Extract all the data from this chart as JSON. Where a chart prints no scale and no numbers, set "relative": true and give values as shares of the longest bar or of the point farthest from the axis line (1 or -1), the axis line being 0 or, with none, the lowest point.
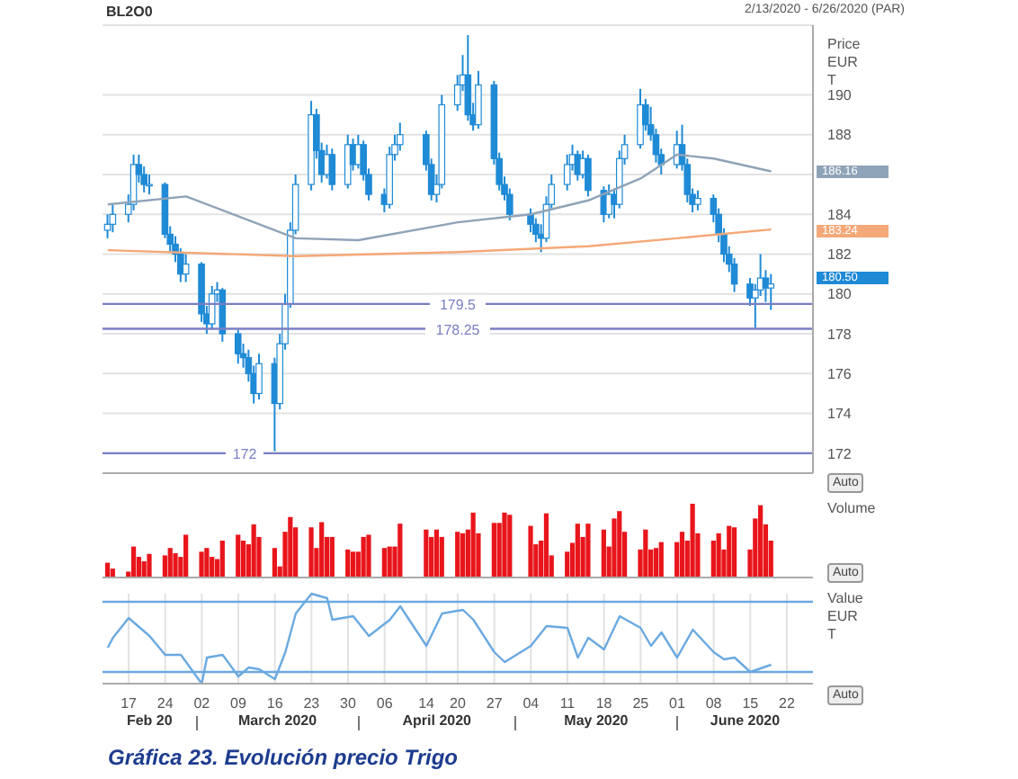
{
  "chart_data": [
    {
      "type": "candlestick",
      "ylabel": "Price EUR T",
      "tick_labels": "y",
      "grid": true,
      "annotations": [
        "BL2O0",
        "2/13/2020 - 6/26/2020 (PAR)",
        "Auto",
        "186.16",
        "183.24"
      ],
      "value_labels": [
        null,
        null,
        null,
        null,
        null,
        null,
        null,
        null,
        null,
        null,
        null,
        null,
        null,
        null,
        null,
        null,
        null,
        null,
        null,
        null,
        null,
        null,
        null,
        null,
        null,
        null,
        null,
        null,
        null,
        null,
        null,
        null,
        null,
        null,
        null,
        null,
        null,
        null,
        null,
        null,
        null,
        null,
        null,
        null,
        null,
        null,
        null,
        null,
        null,
        null,
        null,
        null,
        null,
        null,
        null,
        null,
        null,
        null,
        null,
        null,
        null,
        null,
        null,
        null,
        null,
        null,
        null,
        null,
        null,
        null,
        null,
        null,
        null,
        null,
        null,
        null,
        null,
        null,
        null,
        null,
        null,
        null,
        null,
        null,
        null,
        null,
        null,
        null,
        "180.50"
      ],
      "xlim": [
        "2020-02-12",
        "2020-06-27"
      ],
      "ylim": [
        171,
        193.5
      ],
      "yticks": [
        172,
        174,
        176,
        178,
        180,
        182,
        184,
        {
          "value": 186,
          "label": null
        },
        188,
        190
      ],
      "ref_lines": [
        {
          "axis": "y",
          "value": 179.5,
          "label": "179.5",
          "color": "#7b7fc4"
        },
        {
          "axis": "y",
          "value": 178.25,
          "label": "178.25",
          "color": "#7b7fc4"
        },
        {
          "axis": "y",
          "value": 172,
          "label": "172",
          "color": "#7b7fc4"
        }
      ],
      "color": "#1f8ad6",
      "x": [
        "2020-02-13",
        "2020-02-14",
        "2020-02-17",
        "2020-02-18",
        "2020-02-19",
        "2020-02-20",
        "2020-02-21",
        "2020-02-24",
        "2020-02-25",
        "2020-02-26",
        "2020-02-27",
        "2020-02-28",
        "2020-03-02",
        "2020-03-03",
        "2020-03-04",
        "2020-03-05",
        "2020-03-06",
        "2020-03-09",
        "2020-03-10",
        "2020-03-11",
        "2020-03-12",
        "2020-03-13",
        "2020-03-16",
        "2020-03-17",
        "2020-03-18",
        "2020-03-19",
        "2020-03-20",
        "2020-03-23",
        "2020-03-24",
        "2020-03-25",
        "2020-03-26",
        "2020-03-27",
        "2020-03-30",
        "2020-03-31",
        "2020-04-01",
        "2020-04-02",
        "2020-04-03",
        "2020-04-06",
        "2020-04-07",
        "2020-04-08",
        "2020-04-09",
        "2020-04-14",
        "2020-04-15",
        "2020-04-16",
        "2020-04-17",
        "2020-04-20",
        "2020-04-21",
        "2020-04-22",
        "2020-04-23",
        "2020-04-24",
        "2020-04-27",
        "2020-04-28",
        "2020-04-29",
        "2020-04-30",
        "2020-05-04",
        "2020-05-05",
        "2020-05-06",
        "2020-05-07",
        "2020-05-08",
        "2020-05-11",
        "2020-05-12",
        "2020-05-13",
        "2020-05-14",
        "2020-05-15",
        "2020-05-18",
        "2020-05-19",
        "2020-05-20",
        "2020-05-21",
        "2020-05-22",
        "2020-05-25",
        "2020-05-26",
        "2020-05-27",
        "2020-05-28",
        "2020-05-29",
        "2020-06-01",
        "2020-06-02",
        "2020-06-03",
        "2020-06-04",
        "2020-06-05",
        "2020-06-08",
        "2020-06-09",
        "2020-06-10",
        "2020-06-11",
        "2020-06-12",
        "2020-06-15",
        "2020-06-16",
        "2020-06-17",
        "2020-06-18",
        "2020-06-19"
      ],
      "ohlc": [
        [
          183.2,
          184,
          182.8,
          183.5
        ],
        [
          183.5,
          184.5,
          183.1,
          184
        ],
        [
          184,
          185,
          183.6,
          184.5
        ],
        [
          184.5,
          187,
          184.2,
          186.5
        ],
        [
          186.5,
          187,
          185.6,
          186
        ],
        [
          186,
          186.4,
          185.1,
          185.5
        ],
        [
          185.5,
          186,
          185,
          185.5
        ],
        [
          185.5,
          185.6,
          182.8,
          183
        ],
        [
          183,
          183.4,
          182.1,
          182.5
        ],
        [
          182.5,
          182.9,
          181.6,
          182
        ],
        [
          182,
          182.3,
          180.6,
          181
        ],
        [
          181,
          182,
          180.6,
          181.5
        ],
        [
          181.5,
          181.6,
          178.6,
          179
        ],
        [
          179,
          179.4,
          178,
          178.5
        ],
        [
          178.5,
          180.4,
          178.2,
          180
        ],
        [
          180,
          180.6,
          179.6,
          180.2
        ],
        [
          180.2,
          180.3,
          177.6,
          178
        ],
        [
          178,
          178.2,
          176.5,
          177
        ],
        [
          177,
          177.5,
          176.3,
          176.8
        ],
        [
          176.8,
          177.2,
          175.6,
          176
        ],
        [
          176,
          176.4,
          174.5,
          175
        ],
        [
          175,
          177,
          174.7,
          176.5
        ],
        [
          176.5,
          176.8,
          172.1,
          174.5
        ],
        [
          174.5,
          178,
          174.2,
          177.5
        ],
        [
          177.5,
          180,
          177.2,
          179.5
        ],
        [
          179.5,
          183.6,
          179.3,
          183.2
        ],
        [
          183.2,
          186,
          183,
          185.5
        ],
        [
          185.5,
          189.7,
          185.2,
          189
        ],
        [
          189,
          189.3,
          186.8,
          187.2
        ],
        [
          187.2,
          187.6,
          185.6,
          186
        ],
        [
          186,
          187.5,
          185.8,
          187
        ],
        [
          187,
          187.3,
          185.2,
          185.5
        ],
        [
          185.5,
          188,
          185.3,
          187.5
        ],
        [
          187.5,
          187.8,
          186.2,
          186.5
        ],
        [
          186.5,
          188,
          186.3,
          187.5
        ],
        [
          187.5,
          187.7,
          185.7,
          186
        ],
        [
          186,
          186.3,
          184.7,
          185
        ],
        [
          185,
          185.3,
          184.1,
          184.5
        ],
        [
          184.5,
          187.4,
          184.3,
          187
        ],
        [
          187,
          188,
          186.7,
          187.5
        ],
        [
          187.5,
          188.6,
          187.2,
          188
        ],
        [
          188,
          188.2,
          186.2,
          186.5
        ],
        [
          186.5,
          186.8,
          184.7,
          185
        ],
        [
          185,
          186,
          184.6,
          185.5
        ],
        [
          185.5,
          190,
          185.3,
          189.5
        ],
        [
          189.5,
          191,
          189.2,
          190.5
        ],
        [
          190.5,
          192,
          190.2,
          191
        ],
        [
          191,
          193,
          188.7,
          189
        ],
        [
          189,
          189.6,
          188.2,
          188.5
        ],
        [
          188.5,
          191.2,
          188.3,
          190.5
        ],
        [
          190.5,
          190.7,
          186.5,
          186.8
        ],
        [
          186.8,
          187.1,
          185.2,
          185.5
        ],
        [
          185.5,
          185.9,
          184.7,
          185
        ],
        [
          185,
          185.3,
          183.7,
          184
        ],
        [
          184,
          184.3,
          183.1,
          183.5
        ],
        [
          183.5,
          183.8,
          182.6,
          183
        ],
        [
          183,
          183.5,
          182.1,
          182.8
        ],
        [
          182.8,
          184.9,
          182.6,
          184.5
        ],
        [
          184.5,
          186,
          184.3,
          185.5
        ],
        [
          185.5,
          187,
          185.2,
          186.5
        ],
        [
          186.5,
          187.5,
          186.2,
          187
        ],
        [
          187,
          187.2,
          185.7,
          186
        ],
        [
          186,
          187.2,
          185.8,
          186.8
        ],
        [
          186.8,
          187,
          184.9,
          185.2
        ],
        [
          185.2,
          185.4,
          183.6,
          184
        ],
        [
          184,
          185.5,
          183.8,
          185
        ],
        [
          185,
          185.3,
          183.8,
          184.5
        ],
        [
          184.5,
          187.2,
          184.3,
          186.8
        ],
        [
          186.8,
          188,
          186.5,
          187.5
        ],
        [
          187.5,
          190.3,
          187.3,
          189.5
        ],
        [
          189.5,
          189.8,
          188.2,
          188.5
        ],
        [
          188.5,
          189.4,
          187.7,
          188
        ],
        [
          188,
          188.3,
          186.6,
          187
        ],
        [
          187,
          187.3,
          186,
          186.5
        ],
        [
          186.5,
          188.2,
          186.3,
          187.5
        ],
        [
          187.5,
          188.5,
          186.2,
          186.5
        ],
        [
          186.5,
          186.8,
          184.6,
          185
        ],
        [
          185,
          185.3,
          184.1,
          184.5
        ],
        [
          184.5,
          185.2,
          184.2,
          184.8
        ],
        [
          184.8,
          185,
          183.6,
          184
        ],
        [
          184,
          184.3,
          182.6,
          183
        ],
        [
          183,
          183.3,
          181.6,
          182
        ],
        [
          182,
          182.4,
          181.1,
          181.5
        ],
        [
          181.5,
          181.8,
          180.1,
          180.5
        ],
        [
          180.5,
          180.8,
          179.4,
          179.8
        ],
        [
          179.8,
          180.5,
          178.3,
          180.2
        ],
        [
          180.2,
          182,
          179.9,
          180.8
        ],
        [
          180.8,
          181.2,
          179.6,
          180.3
        ],
        [
          180.3,
          181,
          179.2,
          180.5
        ]
      ],
      "series": [
        {
          "type": "line",
          "color": "#8fa3b8",
          "x": [
            "2020-02-13",
            "2020-02-28",
            "2020-03-20",
            "2020-04-01",
            "2020-04-20",
            "2020-05-04",
            "2020-05-15",
            "2020-05-25",
            "2020-06-01",
            "2020-06-08",
            "2020-06-19"
          ],
          "values": [
            184.5,
            184.9,
            182.8,
            182.7,
            183.6,
            184,
            184.7,
            185.8,
            187,
            186.8,
            186.16
          ]
        },
        {
          "type": "line",
          "color": "#f5a878",
          "x": [
            "2020-02-13",
            "2020-03-20",
            "2020-04-20",
            "2020-05-15",
            "2020-06-01",
            "2020-06-19"
          ],
          "values": [
            182.2,
            181.9,
            182.1,
            182.4,
            182.8,
            183.24
          ]
        }
      ]
    },
    {
      "type": "bar",
      "relative": true,
      "ylabel": "Volume",
      "tick_labels": false,
      "grid": "x",
      "color": "#e8151b",
      "annotations": [
        "Auto"
      ],
      "xlim": [
        "2020-02-12",
        "2020-06-27"
      ],
      "x": [
        "2020-02-13",
        "2020-02-14",
        "2020-02-17",
        "2020-02-18",
        "2020-02-19",
        "2020-02-20",
        "2020-02-21",
        "2020-02-24",
        "2020-02-25",
        "2020-02-26",
        "2020-02-27",
        "2020-02-28",
        "2020-03-02",
        "2020-03-03",
        "2020-03-04",
        "2020-03-05",
        "2020-03-06",
        "2020-03-09",
        "2020-03-10",
        "2020-03-11",
        "2020-03-12",
        "2020-03-13",
        "2020-03-16",
        "2020-03-17",
        "2020-03-18",
        "2020-03-19",
        "2020-03-20",
        "2020-03-23",
        "2020-03-24",
        "2020-03-25",
        "2020-03-26",
        "2020-03-27",
        "2020-03-30",
        "2020-03-31",
        "2020-04-01",
        "2020-04-02",
        "2020-04-03",
        "2020-04-06",
        "2020-04-07",
        "2020-04-08",
        "2020-04-09",
        "2020-04-14",
        "2020-04-15",
        "2020-04-16",
        "2020-04-17",
        "2020-04-20",
        "2020-04-21",
        "2020-04-22",
        "2020-04-23",
        "2020-04-24",
        "2020-04-27",
        "2020-04-28",
        "2020-04-29",
        "2020-04-30",
        "2020-05-04",
        "2020-05-05",
        "2020-05-06",
        "2020-05-07",
        "2020-05-08",
        "2020-05-11",
        "2020-05-12",
        "2020-05-13",
        "2020-05-14",
        "2020-05-15",
        "2020-05-18",
        "2020-05-19",
        "2020-05-20",
        "2020-05-21",
        "2020-05-22",
        "2020-05-25",
        "2020-05-26",
        "2020-05-27",
        "2020-05-28",
        "2020-05-29",
        "2020-06-01",
        "2020-06-02",
        "2020-06-03",
        "2020-06-04",
        "2020-06-05",
        "2020-06-08",
        "2020-06-09",
        "2020-06-10",
        "2020-06-11",
        "2020-06-12",
        "2020-06-15",
        "2020-06-16",
        "2020-06-17",
        "2020-06-18",
        "2020-06-19"
      ],
      "values": [
        0.2,
        0.12,
        0.08,
        0.42,
        0.28,
        0.22,
        0.32,
        0.3,
        0.4,
        0.33,
        0.28,
        0.58,
        0.35,
        0.4,
        0.28,
        0.25,
        0.5,
        0.58,
        0.5,
        0.45,
        0.72,
        0.55,
        0.4,
        0.15,
        0.62,
        0.82,
        0.68,
        0.68,
        0.4,
        0.75,
        0.55,
        0.55,
        0.38,
        0.35,
        0.35,
        0.55,
        0.58,
        0.4,
        0.42,
        0.42,
        0.73,
        0.65,
        0.55,
        0.65,
        0.55,
        0.62,
        0.6,
        0.65,
        0.88,
        0.6,
        0.74,
        0.74,
        0.88,
        0.85,
        0.7,
        0.45,
        0.5,
        0.87,
        0.3,
        0.35,
        0.47,
        0.73,
        0.55,
        0.73,
        0.65,
        0.42,
        0.8,
        0.9,
        0.62,
        0.38,
        0.65,
        0.38,
        0.4,
        0.48,
        0.48,
        0.62,
        0.5,
        1,
        0.6,
        0.5,
        0.6,
        0.38,
        0.7,
        0.68,
        0.38,
        0.8,
        0.98,
        0.72,
        0.5
      ]
    },
    {
      "type": "line",
      "relative": true,
      "ylabel": "Value EUR T",
      "tick_labels": "x",
      "grid": "x",
      "color": "#6aa9e0",
      "marker": "none",
      "title": "Gráfica 23. Evolución precio Trigo",
      "annotations": [
        "Auto",
        "Feb 20",
        "March 2020",
        "April 2020",
        "May 2020",
        "June 2020"
      ],
      "ref_lines": [
        {
          "axis": "y",
          "value": 0.91,
          "color": "#6aa9e0"
        },
        {
          "axis": "y",
          "value": 0.13,
          "color": "#6aa9e0"
        }
      ],
      "xlim": [
        "2020-02-12",
        "2020-06-27"
      ],
      "xticks": [
        {
          "value": "2020-02-17",
          "label": "17"
        },
        {
          "value": "2020-02-24",
          "label": "24"
        },
        {
          "value": "2020-03-02",
          "label": "02"
        },
        {
          "value": "2020-03-09",
          "label": "09"
        },
        {
          "value": "2020-03-16",
          "label": "16"
        },
        {
          "value": "2020-03-23",
          "label": "23"
        },
        {
          "value": "2020-03-30",
          "label": "30"
        },
        {
          "value": "2020-04-06",
          "label": "06"
        },
        {
          "value": "2020-04-14",
          "label": "14"
        },
        {
          "value": "2020-04-20",
          "label": "20"
        },
        {
          "value": "2020-04-27",
          "label": "27"
        },
        {
          "value": "2020-05-04",
          "label": "04"
        },
        {
          "value": "2020-05-11",
          "label": "11"
        },
        {
          "value": "2020-05-18",
          "label": "18"
        },
        {
          "value": "2020-05-25",
          "label": "25"
        },
        {
          "value": "2020-06-01",
          "label": "01"
        },
        {
          "value": "2020-06-08",
          "label": "08"
        },
        {
          "value": "2020-06-15",
          "label": "15"
        },
        {
          "value": "2020-06-22",
          "label": "22"
        }
      ],
      "x": [
        "2020-02-13",
        "2020-02-14",
        "2020-02-17",
        "2020-02-21",
        "2020-02-24",
        "2020-02-27",
        "2020-03-02",
        "2020-03-03",
        "2020-03-06",
        "2020-03-09",
        "2020-03-11",
        "2020-03-13",
        "2020-03-16",
        "2020-03-18",
        "2020-03-20",
        "2020-03-23",
        "2020-03-26",
        "2020-03-27",
        "2020-03-31",
        "2020-04-03",
        "2020-04-07",
        "2020-04-09",
        "2020-04-14",
        "2020-04-17",
        "2020-04-21",
        "2020-04-23",
        "2020-04-27",
        "2020-04-29",
        "2020-05-04",
        "2020-05-07",
        "2020-05-11",
        "2020-05-13",
        "2020-05-15",
        "2020-05-18",
        "2020-05-21",
        "2020-05-25",
        "2020-05-27",
        "2020-05-29",
        "2020-06-01",
        "2020-06-04",
        "2020-06-08",
        "2020-06-10",
        "2020-06-12",
        "2020-06-15",
        "2020-06-19"
      ],
      "values": [
        0.4,
        0.51,
        0.73,
        0.53,
        0.32,
        0.32,
        0,
        0.29,
        0.32,
        0.08,
        0.18,
        0.16,
        0.05,
        0.35,
        0.78,
        1,
        0.95,
        0.71,
        0.75,
        0.53,
        0.71,
        0.86,
        0.42,
        0.78,
        0.82,
        0.71,
        0.35,
        0.24,
        0.42,
        0.64,
        0.62,
        0.29,
        0.51,
        0.38,
        0.75,
        0.62,
        0.42,
        0.57,
        0.29,
        0.6,
        0.35,
        0.27,
        0.29,
        0.13,
        0.21
      ]
    }
  ]
}
